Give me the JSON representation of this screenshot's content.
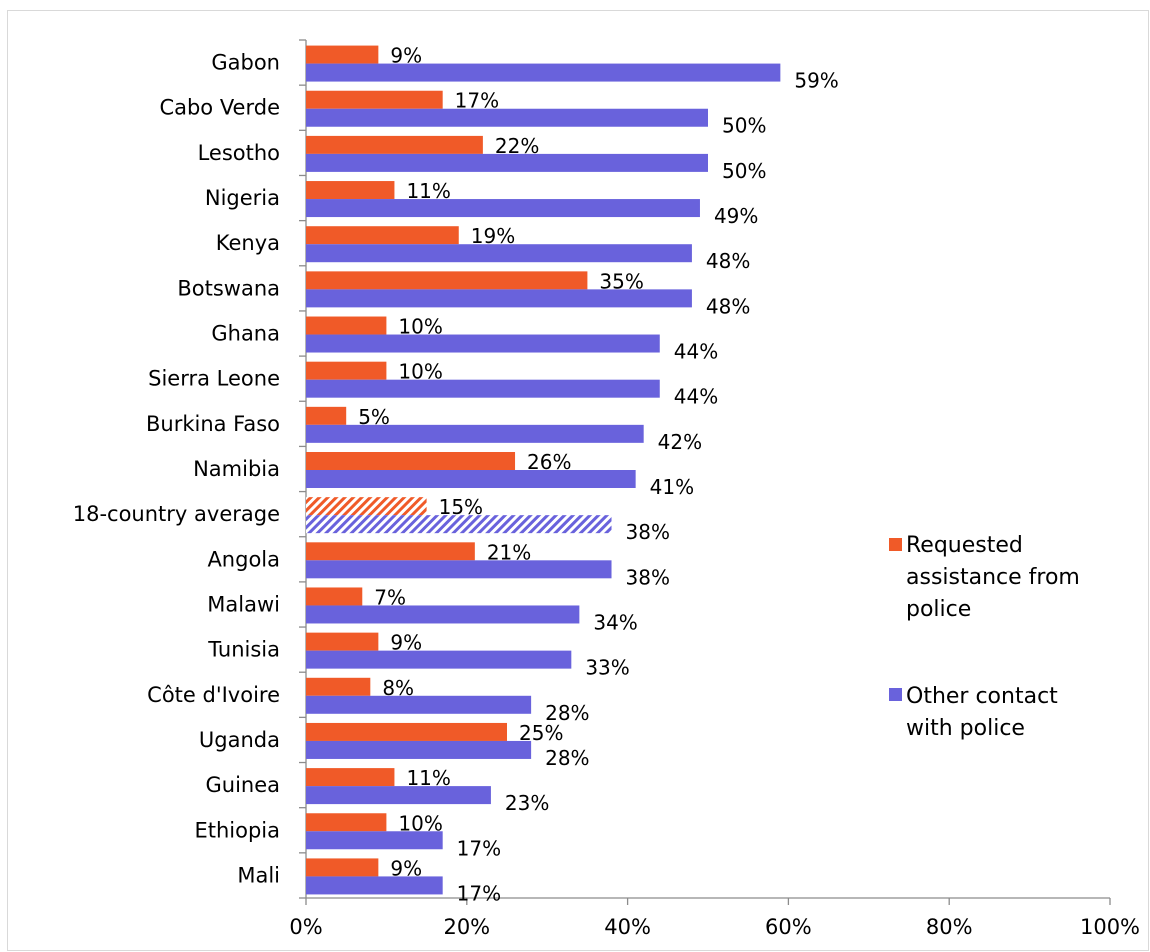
{
  "chart_data": {
    "type": "bar",
    "orientation": "horizontal",
    "categories": [
      "Gabon",
      "Cabo Verde",
      "Lesotho",
      "Nigeria",
      "Kenya",
      "Botswana",
      "Ghana",
      "Sierra Leone",
      "Burkina Faso",
      "Namibia",
      "18-country average",
      "Angola",
      "Malawi",
      "Tunisia",
      "Côte d'Ivoire",
      "Uganda",
      "Guinea",
      "Ethiopia",
      "Mali"
    ],
    "highlighted_category": "18-country average",
    "series": [
      {
        "name": "Requested assistance from police",
        "legend_lines": [
          "Requested",
          "assistance from",
          "police"
        ],
        "color": "#f05a28",
        "values": [
          9,
          17,
          22,
          11,
          19,
          35,
          10,
          10,
          5,
          26,
          15,
          21,
          7,
          9,
          8,
          25,
          11,
          10,
          9
        ],
        "labels": [
          "9%",
          "17%",
          "22%",
          "11%",
          "19%",
          "35%",
          "10%",
          "10%",
          "5%",
          "26%",
          "15%",
          "21%",
          "7%",
          "9%",
          "8%",
          "25%",
          "11%",
          "10%",
          "9%"
        ]
      },
      {
        "name": "Other contact with police",
        "legend_lines": [
          "Other contact",
          "with police"
        ],
        "color": "#6962dc",
        "values": [
          59,
          50,
          50,
          49,
          48,
          48,
          44,
          44,
          42,
          41,
          38,
          38,
          34,
          33,
          28,
          28,
          23,
          17,
          17
        ],
        "labels": [
          "59%",
          "50%",
          "50%",
          "49%",
          "48%",
          "48%",
          "44%",
          "44%",
          "42%",
          "41%",
          "38%",
          "38%",
          "34%",
          "33%",
          "28%",
          "28%",
          "23%",
          "17%",
          "17%"
        ]
      }
    ],
    "x_ticks": [
      0,
      20,
      40,
      60,
      80,
      100
    ],
    "x_tick_labels": [
      "0%",
      "20%",
      "40%",
      "60%",
      "80%",
      "100%"
    ],
    "xlim": [
      0,
      100
    ],
    "grid": false,
    "legend_position": "right",
    "axis_color": "#8c8c8c"
  }
}
